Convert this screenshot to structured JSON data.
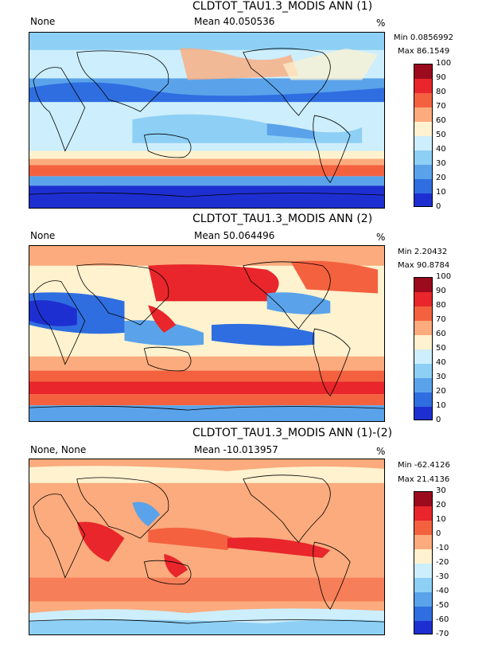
{
  "panels": [
    {
      "title": "CLDTOT_TAU1.3_MODIS ANN (1)",
      "left_label": "None",
      "mean_label": "Mean 40.050536",
      "units": "%",
      "min_label": "Min 0.0856992",
      "max_label": "Max 86.1549",
      "colorbar_ticks": [
        "100",
        "90",
        "80",
        "70",
        "60",
        "50",
        "40",
        "30",
        "20",
        "10",
        "0"
      ],
      "colors": [
        "#9b0a1d",
        "#e8262b",
        "#f4613f",
        "#fbab7d",
        "#fff2cf",
        "#cdeefc",
        "#8ed0f5",
        "#5aa3ea",
        "#2f6ee0",
        "#1e2fd1"
      ]
    },
    {
      "title": "CLDTOT_TAU1.3_MODIS ANN (2)",
      "left_label": "None",
      "mean_label": "Mean 50.064496",
      "units": "%",
      "min_label": "Min 2.20432",
      "max_label": "Max 90.8784",
      "colorbar_ticks": [
        "100",
        "90",
        "80",
        "70",
        "60",
        "50",
        "40",
        "30",
        "20",
        "10",
        "0"
      ],
      "colors": [
        "#9b0a1d",
        "#e8262b",
        "#f4613f",
        "#fbab7d",
        "#fff2cf",
        "#cdeefc",
        "#8ed0f5",
        "#5aa3ea",
        "#2f6ee0",
        "#1e2fd1"
      ]
    },
    {
      "title": "CLDTOT_TAU1.3_MODIS ANN (1)-(2)",
      "left_label": "None, None",
      "mean_label": "Mean -10.013957",
      "units": "%",
      "min_label": "Min -62.4126",
      "max_label": "Max 21.4136",
      "colorbar_ticks": [
        "30",
        "20",
        "10",
        "0",
        "-10",
        "-20",
        "-30",
        "-40",
        "-50",
        "-60",
        "-70"
      ],
      "colors": [
        "#9b0a1d",
        "#e8262b",
        "#f4613f",
        "#fbab7d",
        "#fff2cf",
        "#cdeefc",
        "#8ed0f5",
        "#5aa3ea",
        "#2f6ee0",
        "#1e2fd1"
      ]
    }
  ]
}
